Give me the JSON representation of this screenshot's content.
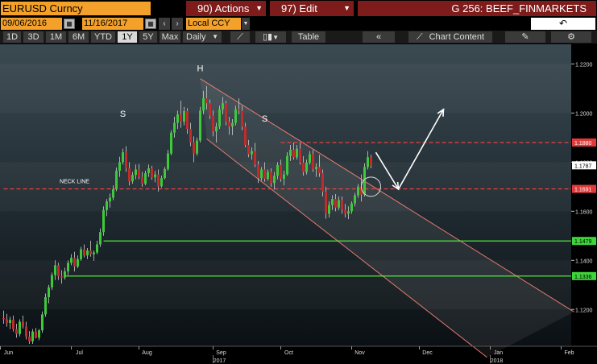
{
  "toolbar": {
    "security": "EURUSD Curncy",
    "actions_label": "90) Actions",
    "edit_label": "97) Edit",
    "graph_title": "G 256: BEEF_FINMARKETS",
    "start_date": "09/06/2016",
    "end_date": "11/16/2017",
    "currency": "Local CCY",
    "back_icon": "undo-arrow-icon"
  },
  "periods": [
    "1D",
    "3D",
    "1M",
    "6M",
    "YTD",
    "1Y",
    "5Y",
    "Max"
  ],
  "selected_period": "1Y",
  "frequency": "Daily",
  "table_label": "Table",
  "chart_content_label": "Chart Content",
  "chart_data": {
    "type": "candlestick",
    "title": "",
    "ylim": [
      1.105,
      1.228
    ],
    "y_ticks": [
      1.12,
      1.14,
      1.16,
      1.18,
      1.2,
      1.22
    ],
    "y_tick_labels": [
      "1.1200",
      "1.1400",
      "1.1600",
      "1.1800",
      "1.2000",
      "1.2200"
    ],
    "x_ticks": [
      {
        "label": "Jun",
        "index": 0
      },
      {
        "label": "Jul",
        "index": 22
      },
      {
        "label": "Aug",
        "index": 43
      },
      {
        "label": "Sep",
        "index": 66
      },
      {
        "label": "Oct",
        "index": 87
      },
      {
        "label": "Nov",
        "index": 109
      },
      {
        "label": "Dec",
        "index": 130
      },
      {
        "label": "Jan",
        "index": 152
      },
      {
        "label": "Feb",
        "index": 174
      }
    ],
    "x_count": 178,
    "year_labels": [
      {
        "label": "2017",
        "index": 66
      },
      {
        "label": "2018",
        "index": 152
      }
    ],
    "annotations": [
      {
        "text": "S",
        "index": 37,
        "y": 1.1985
      },
      {
        "text": "H",
        "index": 61,
        "y": 1.217
      },
      {
        "text": "S",
        "index": 81,
        "y": 1.1965
      },
      {
        "text": "NECK LINE",
        "index": 22,
        "y": 1.1715
      }
    ],
    "price_labels": [
      {
        "value": 1.188,
        "text": "1.1880",
        "style": "red"
      },
      {
        "value": 1.1787,
        "text": "1.1787",
        "style": "white"
      },
      {
        "value": 1.1691,
        "text": "1.1691",
        "style": "red"
      },
      {
        "value": 1.1479,
        "text": "1.1479",
        "style": "green"
      },
      {
        "value": 1.1336,
        "text": "1.1336",
        "style": "green"
      }
    ],
    "hlines": [
      {
        "value": 1.1691,
        "color": "#ff4040",
        "dash": true,
        "from_index": 0
      },
      {
        "value": 1.188,
        "color": "#ff4040",
        "dash": true,
        "from_index": 86
      },
      {
        "value": 1.1479,
        "color": "#55ff3c",
        "dash": false,
        "from_index": 31
      },
      {
        "value": 1.1336,
        "color": "#55ff3c",
        "dash": false,
        "from_index": 19
      }
    ],
    "channel": {
      "upper": [
        [
          61,
          1.214
        ],
        [
          177,
          1.119
        ]
      ],
      "lower": [
        [
          63,
          1.1895
        ],
        [
          150,
          1.1005
        ]
      ]
    },
    "arrows": [
      [
        [
          115.5,
          1.184
        ],
        [
          122.5,
          1.169
        ]
      ],
      [
        [
          122.5,
          1.169
        ],
        [
          136.5,
          1.2015
        ]
      ]
    ],
    "circle": {
      "index": 114,
      "y": 1.17
    },
    "candles": [
      [
        1.1165,
        1.1195,
        1.1142,
        1.116
      ],
      [
        1.116,
        1.1182,
        1.113,
        1.1145
      ],
      [
        1.1145,
        1.117,
        1.112,
        1.1158
      ],
      [
        1.1158,
        1.1175,
        1.111,
        1.112
      ],
      [
        1.112,
        1.1142,
        1.1085,
        1.11
      ],
      [
        1.11,
        1.116,
        1.109,
        1.115
      ],
      [
        1.115,
        1.1175,
        1.1122,
        1.113
      ],
      [
        1.113,
        1.115,
        1.1078,
        1.109
      ],
      [
        1.109,
        1.1112,
        1.106,
        1.107
      ],
      [
        1.107,
        1.112,
        1.106,
        1.111
      ],
      [
        1.111,
        1.1125,
        1.1082,
        1.1085
      ],
      [
        1.1085,
        1.112,
        1.1075,
        1.1115
      ],
      [
        1.1115,
        1.1192,
        1.1105,
        1.118
      ],
      [
        1.118,
        1.1265,
        1.117,
        1.125
      ],
      [
        1.125,
        1.13,
        1.1225,
        1.129
      ],
      [
        1.129,
        1.135,
        1.128,
        1.134
      ],
      [
        1.134,
        1.14,
        1.132,
        1.138
      ],
      [
        1.138,
        1.139,
        1.132,
        1.1335
      ],
      [
        1.1335,
        1.136,
        1.1305,
        1.133
      ],
      [
        1.133,
        1.137,
        1.1322,
        1.1355
      ],
      [
        1.1355,
        1.14,
        1.134,
        1.139
      ],
      [
        1.139,
        1.1425,
        1.138,
        1.141
      ],
      [
        1.141,
        1.1435,
        1.1355,
        1.1375
      ],
      [
        1.1375,
        1.142,
        1.1368,
        1.1405
      ],
      [
        1.1405,
        1.1455,
        1.1398,
        1.1445
      ],
      [
        1.1445,
        1.1465,
        1.1412,
        1.142
      ],
      [
        1.142,
        1.145,
        1.1405,
        1.144
      ],
      [
        1.144,
        1.148,
        1.1415,
        1.1425
      ],
      [
        1.1425,
        1.144,
        1.1398,
        1.1432
      ],
      [
        1.1432,
        1.148,
        1.1425,
        1.1465
      ],
      [
        1.1465,
        1.153,
        1.1455,
        1.1515
      ],
      [
        1.1515,
        1.162,
        1.15,
        1.1605
      ],
      [
        1.1605,
        1.165,
        1.158,
        1.164
      ],
      [
        1.164,
        1.1672,
        1.1615,
        1.1655
      ],
      [
        1.1655,
        1.1705,
        1.1645,
        1.169
      ],
      [
        1.169,
        1.1778,
        1.1682,
        1.1765
      ],
      [
        1.1765,
        1.1822,
        1.174,
        1.18
      ],
      [
        1.18,
        1.1855,
        1.179,
        1.184
      ],
      [
        1.184,
        1.1865,
        1.176,
        1.1775
      ],
      [
        1.1775,
        1.18,
        1.1705,
        1.1722
      ],
      [
        1.1722,
        1.176,
        1.1712,
        1.1748
      ],
      [
        1.1748,
        1.179,
        1.173,
        1.177
      ],
      [
        1.177,
        1.1792,
        1.173,
        1.174
      ],
      [
        1.174,
        1.176,
        1.17,
        1.1712
      ],
      [
        1.1712,
        1.1765,
        1.1706,
        1.1755
      ],
      [
        1.1755,
        1.179,
        1.174,
        1.1775
      ],
      [
        1.1775,
        1.1785,
        1.1728,
        1.1738
      ],
      [
        1.1738,
        1.1765,
        1.1718,
        1.175
      ],
      [
        1.175,
        1.177,
        1.168,
        1.1702
      ],
      [
        1.1702,
        1.1745,
        1.1696,
        1.1735
      ],
      [
        1.1735,
        1.178,
        1.173,
        1.1772
      ],
      [
        1.1772,
        1.185,
        1.1765,
        1.1835
      ],
      [
        1.1835,
        1.193,
        1.1828,
        1.192
      ],
      [
        1.192,
        1.1985,
        1.19,
        1.196
      ],
      [
        1.196,
        1.201,
        1.1935,
        1.1995
      ],
      [
        1.1995,
        1.205,
        1.194,
        1.1965
      ],
      [
        1.1965,
        1.2025,
        1.195,
        1.2008
      ],
      [
        1.2008,
        1.202,
        1.1915,
        1.1935
      ],
      [
        1.1935,
        1.196,
        1.1865,
        1.188
      ],
      [
        1.188,
        1.1905,
        1.18,
        1.1835
      ],
      [
        1.1835,
        1.19,
        1.1826,
        1.1888
      ],
      [
        1.1888,
        1.2025,
        1.188,
        1.201
      ],
      [
        1.201,
        1.209,
        1.1995,
        1.206
      ],
      [
        1.206,
        1.211,
        1.2015,
        1.204
      ],
      [
        1.204,
        1.2055,
        1.1975,
        1.199
      ],
      [
        1.199,
        1.201,
        1.1905,
        1.1925
      ],
      [
        1.1925,
        1.196,
        1.188,
        1.1945
      ],
      [
        1.1945,
        1.203,
        1.1935,
        1.2015
      ],
      [
        1.2015,
        1.2065,
        1.1995,
        1.204
      ],
      [
        1.204,
        1.205,
        1.195,
        1.1965
      ],
      [
        1.1965,
        1.1985,
        1.1912,
        1.1945
      ],
      [
        1.1945,
        1.1975,
        1.191,
        1.196
      ],
      [
        1.196,
        1.203,
        1.195,
        1.2015
      ],
      [
        1.2015,
        1.206,
        1.1995,
        1.201
      ],
      [
        1.201,
        1.203,
        1.193,
        1.1945
      ],
      [
        1.1945,
        1.196,
        1.186,
        1.187
      ],
      [
        1.187,
        1.189,
        1.182,
        1.1832
      ],
      [
        1.1832,
        1.186,
        1.181,
        1.1845
      ],
      [
        1.1845,
        1.1878,
        1.178,
        1.179
      ],
      [
        1.179,
        1.1805,
        1.1715,
        1.1735
      ],
      [
        1.1735,
        1.178,
        1.1725,
        1.177
      ],
      [
        1.177,
        1.18,
        1.172,
        1.1732
      ],
      [
        1.1732,
        1.177,
        1.1725,
        1.176
      ],
      [
        1.176,
        1.1775,
        1.17,
        1.1715
      ],
      [
        1.1715,
        1.176,
        1.1688,
        1.1745
      ],
      [
        1.1745,
        1.18,
        1.173,
        1.1788
      ],
      [
        1.1788,
        1.181,
        1.172,
        1.1732
      ],
      [
        1.1732,
        1.1765,
        1.1705,
        1.175
      ],
      [
        1.175,
        1.184,
        1.1745,
        1.1825
      ],
      [
        1.1825,
        1.187,
        1.1805,
        1.185
      ],
      [
        1.185,
        1.188,
        1.181,
        1.182
      ],
      [
        1.182,
        1.187,
        1.181,
        1.1855
      ],
      [
        1.1855,
        1.188,
        1.179,
        1.1798
      ],
      [
        1.1798,
        1.1825,
        1.1745,
        1.176
      ],
      [
        1.176,
        1.181,
        1.175,
        1.1798
      ],
      [
        1.1798,
        1.1845,
        1.179,
        1.1832
      ],
      [
        1.1832,
        1.185,
        1.176,
        1.1772
      ],
      [
        1.1772,
        1.1795,
        1.174,
        1.178
      ],
      [
        1.178,
        1.183,
        1.174,
        1.1755
      ],
      [
        1.1755,
        1.177,
        1.166,
        1.168
      ],
      [
        1.168,
        1.17,
        1.157,
        1.159
      ],
      [
        1.159,
        1.164,
        1.1575,
        1.1625
      ],
      [
        1.1625,
        1.1665,
        1.1605,
        1.165
      ],
      [
        1.165,
        1.167,
        1.16,
        1.1615
      ],
      [
        1.1615,
        1.166,
        1.1605,
        1.1645
      ],
      [
        1.1645,
        1.166,
        1.159,
        1.1605
      ],
      [
        1.1605,
        1.163,
        1.1575,
        1.159
      ],
      [
        1.159,
        1.162,
        1.1568,
        1.16
      ],
      [
        1.16,
        1.164,
        1.159,
        1.1632
      ],
      [
        1.1632,
        1.1675,
        1.162,
        1.1665
      ],
      [
        1.1665,
        1.171,
        1.1655,
        1.17
      ],
      [
        1.17,
        1.175,
        1.164,
        1.1668
      ],
      [
        1.1668,
        1.1795,
        1.166,
        1.178
      ],
      [
        1.178,
        1.1845,
        1.177,
        1.182
      ],
      [
        1.182,
        1.183,
        1.1775,
        1.1787
      ]
    ]
  }
}
